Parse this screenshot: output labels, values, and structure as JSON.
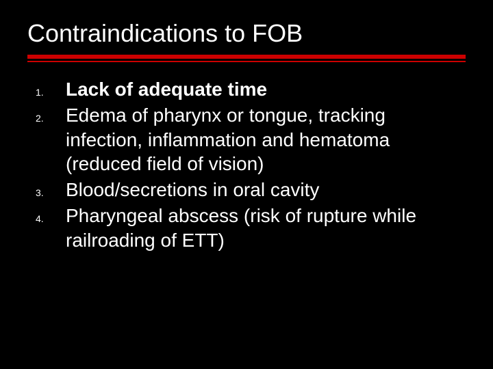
{
  "background_color": "#000000",
  "text_color": "#ffffff",
  "accent_color": "#cc0000",
  "title": {
    "text": "Contraindications to FOB",
    "fontsize": 36,
    "weight": 400
  },
  "rule": {
    "thick_height": 6,
    "thin_height": 2,
    "gap": 3
  },
  "list": {
    "marker_fontsize": 14,
    "body_fontsize": 28,
    "items": [
      {
        "marker": "1.",
        "text": "Lack of adequate time",
        "bold": true
      },
      {
        "marker": "2.",
        "text": "Edema of pharynx or tongue, tracking infection, inflammation and hematoma (reduced field of vision)",
        "bold": false
      },
      {
        "marker": "3.",
        "text": "Blood/secretions in oral cavity",
        "bold": false
      },
      {
        "marker": "4.",
        "text": "Pharyngeal abscess (risk of rupture while railroading of ETT)",
        "bold": false
      }
    ]
  }
}
